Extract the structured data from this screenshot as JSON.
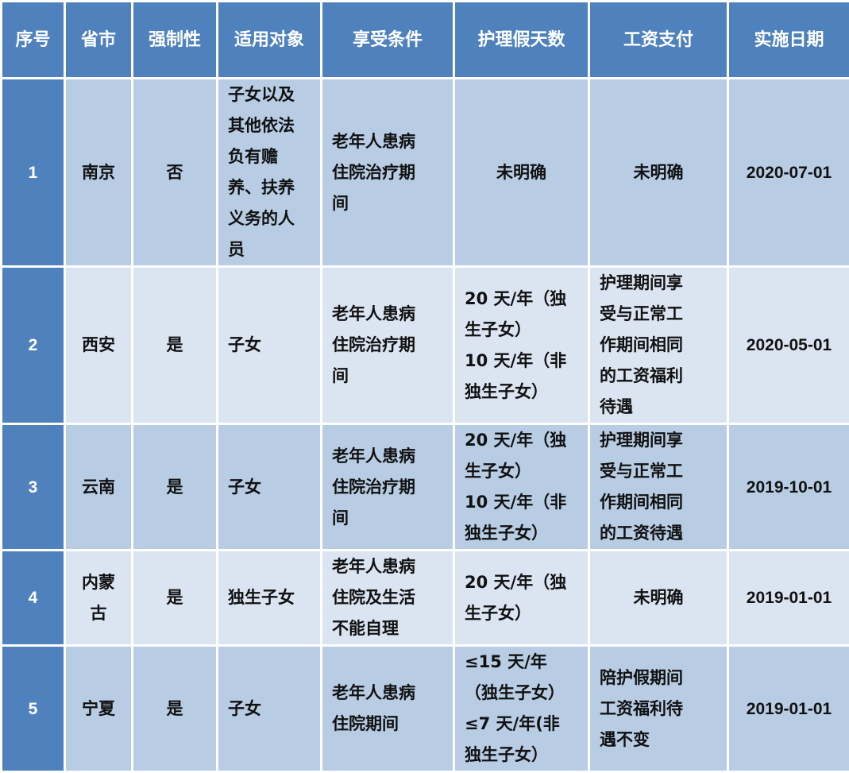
{
  "colors": {
    "header": "#4f81bd",
    "row_odd": "#b8cce4",
    "row_even": "#dbe5f1"
  },
  "headers": [
    "序号",
    "省市",
    "强制性",
    "适用对象",
    "享受条件",
    "护理假天数",
    "工资支付",
    "实施日期"
  ],
  "rows": [
    {
      "no": "1",
      "city": "南京",
      "mandatory": "否",
      "target": "子女以及\n其他依法\n负有赡\n养、扶养\n义务的人\n员",
      "condition": "老年人患病\n住院治疗期\n间",
      "days": "未明确",
      "salary": "未明确",
      "date": "2020-07-01"
    },
    {
      "no": "2",
      "city": "西安",
      "mandatory": "是",
      "target": "子女",
      "condition": "老年人患病\n住院治疗期\n间",
      "days": "20 天/年（独\n生子女）\n10 天/年（非\n独生子女）",
      "salary": "护理期间享\n受与正常工\n作期间相同\n的工资福利\n待遇",
      "date": "2020-05-01"
    },
    {
      "no": "3",
      "city": "云南",
      "mandatory": "是",
      "target": "子女",
      "condition": "老年人患病\n住院治疗期\n间",
      "days": "20 天/年（独\n生子女）\n10 天/年（非\n独生子女）",
      "salary": "护理期间享\n受与正常工\n作期间相同\n的工资待遇",
      "date": "2019-10-01"
    },
    {
      "no": "4",
      "city": "内蒙\n古",
      "mandatory": "是",
      "target": "独生子女",
      "condition": "老年人患病\n住院及生活\n不能自理",
      "days": "20 天/年（独\n生子女）",
      "salary": "未明确",
      "date": "2019-01-01"
    },
    {
      "no": "5",
      "city": "宁夏",
      "mandatory": "是",
      "target": "子女",
      "condition": "老年人患病\n住院期间",
      "days": "≤15 天/年\n（独生子女）\n≤7 天/年(非\n独生子女）",
      "salary": "陪护假期间\n工资福利待\n遇不变",
      "date": "2019-01-01"
    }
  ]
}
